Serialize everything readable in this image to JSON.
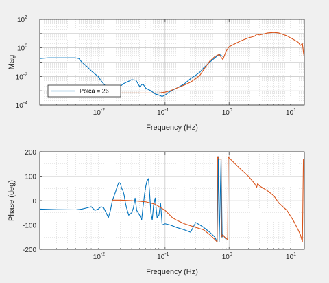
{
  "chart_data": [
    {
      "type": "line",
      "xscale": "log",
      "yscale": "log",
      "xlim": [
        0.0011,
        15
      ],
      "ylim": [
        0.0001,
        100
      ],
      "xlabel": "Frequency (Hz)",
      "ylabel": "Mag",
      "xtick_labels": [
        {
          "value": 0.01,
          "base": "10",
          "exp": "-2"
        },
        {
          "value": 0.1,
          "base": "10",
          "exp": "-1"
        },
        {
          "value": 1,
          "base": "10",
          "exp": "0"
        },
        {
          "value": 10,
          "base": "10",
          "exp": "1"
        }
      ],
      "ytick_labels": [
        {
          "value": 0.0001,
          "base": "10",
          "exp": "-4"
        },
        {
          "value": 0.01,
          "base": "10",
          "exp": "-2"
        },
        {
          "value": 1,
          "base": "10",
          "exp": "0"
        },
        {
          "value": 100,
          "base": "10",
          "exp": "2"
        }
      ],
      "grid": "major+minor",
      "legend": {
        "position": "bottom-left",
        "entries": [
          "Polca = 26"
        ]
      },
      "series": [
        {
          "name": "Polca = 26",
          "color": "#0072BD",
          "points": [
            [
              0.0011,
              0.18
            ],
            [
              0.0015,
              0.2
            ],
            [
              0.002,
              0.2
            ],
            [
              0.003,
              0.2
            ],
            [
              0.004,
              0.2
            ],
            [
              0.0045,
              0.18
            ],
            [
              0.005,
              0.1
            ],
            [
              0.006,
              0.05
            ],
            [
              0.007,
              0.025
            ],
            [
              0.008,
              0.015
            ],
            [
              0.009,
              0.01
            ],
            [
              0.01,
              0.005
            ],
            [
              0.011,
              0.003
            ],
            [
              0.012,
              0.002
            ],
            [
              0.013,
              0.0015
            ],
            [
              0.014,
              0.0012
            ],
            [
              0.016,
              0.0011
            ],
            [
              0.018,
              0.0014
            ],
            [
              0.02,
              0.002
            ],
            [
              0.022,
              0.003
            ],
            [
              0.025,
              0.004
            ],
            [
              0.028,
              0.005
            ],
            [
              0.03,
              0.006
            ],
            [
              0.035,
              0.0055
            ],
            [
              0.04,
              0.002
            ],
            [
              0.045,
              0.003
            ],
            [
              0.05,
              0.0015
            ],
            [
              0.06,
              0.001
            ],
            [
              0.07,
              0.0006
            ],
            [
              0.08,
              0.0005
            ],
            [
              0.09,
              0.0004
            ],
            [
              0.1,
              0.0005
            ],
            [
              0.12,
              0.0009
            ],
            [
              0.15,
              0.0015
            ],
            [
              0.2,
              0.003
            ],
            [
              0.25,
              0.007
            ],
            [
              0.3,
              0.012
            ],
            [
              0.35,
              0.02
            ],
            [
              0.4,
              0.04
            ],
            [
              0.5,
              0.1
            ],
            [
              0.6,
              0.2
            ],
            [
              0.7,
              0.35
            ],
            [
              0.75,
              0.3
            ],
            [
              0.8,
              0.25
            ]
          ]
        },
        {
          "name": "",
          "color": "#D95319",
          "points": [
            [
              0.015,
              0.0007
            ],
            [
              0.03,
              0.0007
            ],
            [
              0.05,
              0.0007
            ],
            [
              0.08,
              0.0007
            ],
            [
              0.1,
              0.0008
            ],
            [
              0.12,
              0.001
            ],
            [
              0.15,
              0.0015
            ],
            [
              0.2,
              0.0025
            ],
            [
              0.25,
              0.004
            ],
            [
              0.3,
              0.007
            ],
            [
              0.35,
              0.012
            ],
            [
              0.4,
              0.03
            ],
            [
              0.5,
              0.12
            ],
            [
              0.6,
              0.25
            ],
            [
              0.7,
              0.35
            ],
            [
              0.8,
              0.15
            ],
            [
              0.9,
              0.6
            ],
            [
              1,
              1.2
            ],
            [
              1.5,
              3
            ],
            [
              2,
              5
            ],
            [
              2.5,
              6.5
            ],
            [
              2.7,
              9
            ],
            [
              3,
              8
            ],
            [
              4,
              11
            ],
            [
              5,
              12
            ],
            [
              6,
              11
            ],
            [
              8,
              7
            ],
            [
              10,
              4
            ],
            [
              12,
              2.5
            ],
            [
              13,
              1.5
            ],
            [
              14,
              2
            ],
            [
              14.5,
              0.5
            ],
            [
              15,
              0.2
            ]
          ]
        }
      ]
    },
    {
      "type": "line",
      "xscale": "log",
      "yscale": "linear",
      "xlim": [
        0.0011,
        15
      ],
      "ylim": [
        -200,
        200
      ],
      "xlabel": "Frequency (Hz)",
      "ylabel": "Phase (deg)",
      "xtick_labels": [
        {
          "value": 0.01,
          "base": "10",
          "exp": "-2"
        },
        {
          "value": 0.1,
          "base": "10",
          "exp": "-1"
        },
        {
          "value": 1,
          "base": "10",
          "exp": "0"
        },
        {
          "value": 10,
          "base": "10",
          "exp": "1"
        }
      ],
      "yticks": [
        -200,
        -100,
        0,
        100,
        200
      ],
      "grid": "major+minor",
      "series": [
        {
          "name": "",
          "color": "#0072BD",
          "points": [
            [
              0.0011,
              -35
            ],
            [
              0.002,
              -37
            ],
            [
              0.004,
              -38
            ],
            [
              0.005,
              -35
            ],
            [
              0.006,
              -30
            ],
            [
              0.007,
              -25
            ],
            [
              0.008,
              -40
            ],
            [
              0.009,
              -35
            ],
            [
              0.01,
              -25
            ],
            [
              0.011,
              -30
            ],
            [
              0.012,
              -50
            ],
            [
              0.013,
              -70
            ],
            [
              0.014,
              -40
            ],
            [
              0.015,
              0
            ],
            [
              0.016,
              20
            ],
            [
              0.017,
              40
            ],
            [
              0.018,
              60
            ],
            [
              0.019,
              75
            ],
            [
              0.02,
              70
            ],
            [
              0.021,
              50
            ],
            [
              0.022,
              40
            ],
            [
              0.023,
              20
            ],
            [
              0.024,
              -10
            ],
            [
              0.025,
              -30
            ],
            [
              0.027,
              -60
            ],
            [
              0.03,
              -50
            ],
            [
              0.032,
              -30
            ],
            [
              0.034,
              10
            ],
            [
              0.036,
              -40
            ],
            [
              0.04,
              -60
            ],
            [
              0.043,
              -80
            ],
            [
              0.045,
              -30
            ],
            [
              0.048,
              30
            ],
            [
              0.05,
              60
            ],
            [
              0.052,
              80
            ],
            [
              0.055,
              90
            ],
            [
              0.057,
              40
            ],
            [
              0.06,
              -50
            ],
            [
              0.063,
              -80
            ],
            [
              0.066,
              -20
            ],
            [
              0.07,
              10
            ],
            [
              0.075,
              -70
            ],
            [
              0.08,
              -60
            ],
            [
              0.085,
              -10
            ],
            [
              0.09,
              -100
            ],
            [
              0.1,
              -95
            ],
            [
              0.12,
              -100
            ],
            [
              0.15,
              -110
            ],
            [
              0.2,
              -120
            ],
            [
              0.25,
              -130
            ],
            [
              0.3,
              -90
            ],
            [
              0.35,
              -100
            ],
            [
              0.4,
              -110
            ],
            [
              0.5,
              -130
            ],
            [
              0.6,
              -150
            ],
            [
              0.65,
              -170
            ],
            [
              0.68,
              180
            ],
            [
              0.7,
              -170
            ],
            [
              0.75,
              170
            ],
            [
              0.78,
              -150
            ],
            [
              0.8,
              -140
            ],
            [
              0.85,
              -150
            ],
            [
              0.9,
              -160
            ]
          ]
        },
        {
          "name": "",
          "color": "#D95319",
          "points": [
            [
              0.015,
              2
            ],
            [
              0.02,
              2
            ],
            [
              0.03,
              0
            ],
            [
              0.05,
              -5
            ],
            [
              0.07,
              -15
            ],
            [
              0.1,
              -40
            ],
            [
              0.13,
              -70
            ],
            [
              0.15,
              -80
            ],
            [
              0.2,
              -95
            ],
            [
              0.3,
              -110
            ],
            [
              0.4,
              -120
            ],
            [
              0.5,
              -140
            ],
            [
              0.6,
              -160
            ],
            [
              0.65,
              -170
            ],
            [
              0.66,
              180
            ],
            [
              0.7,
              170
            ],
            [
              0.75,
              170
            ],
            [
              0.76,
              -150
            ],
            [
              0.8,
              -140
            ],
            [
              0.85,
              -150
            ],
            [
              0.95,
              -160
            ],
            [
              0.97,
              180
            ],
            [
              1,
              175
            ],
            [
              1.5,
              130
            ],
            [
              2,
              100
            ],
            [
              2.5,
              70
            ],
            [
              2.7,
              55
            ],
            [
              2.8,
              70
            ],
            [
              3,
              60
            ],
            [
              4,
              40
            ],
            [
              5,
              20
            ],
            [
              6,
              -10
            ],
            [
              8,
              -40
            ],
            [
              10,
              -80
            ],
            [
              12,
              -120
            ],
            [
              13,
              -140
            ],
            [
              14,
              -170
            ],
            [
              14.5,
              170
            ],
            [
              15,
              150
            ]
          ]
        }
      ]
    }
  ]
}
